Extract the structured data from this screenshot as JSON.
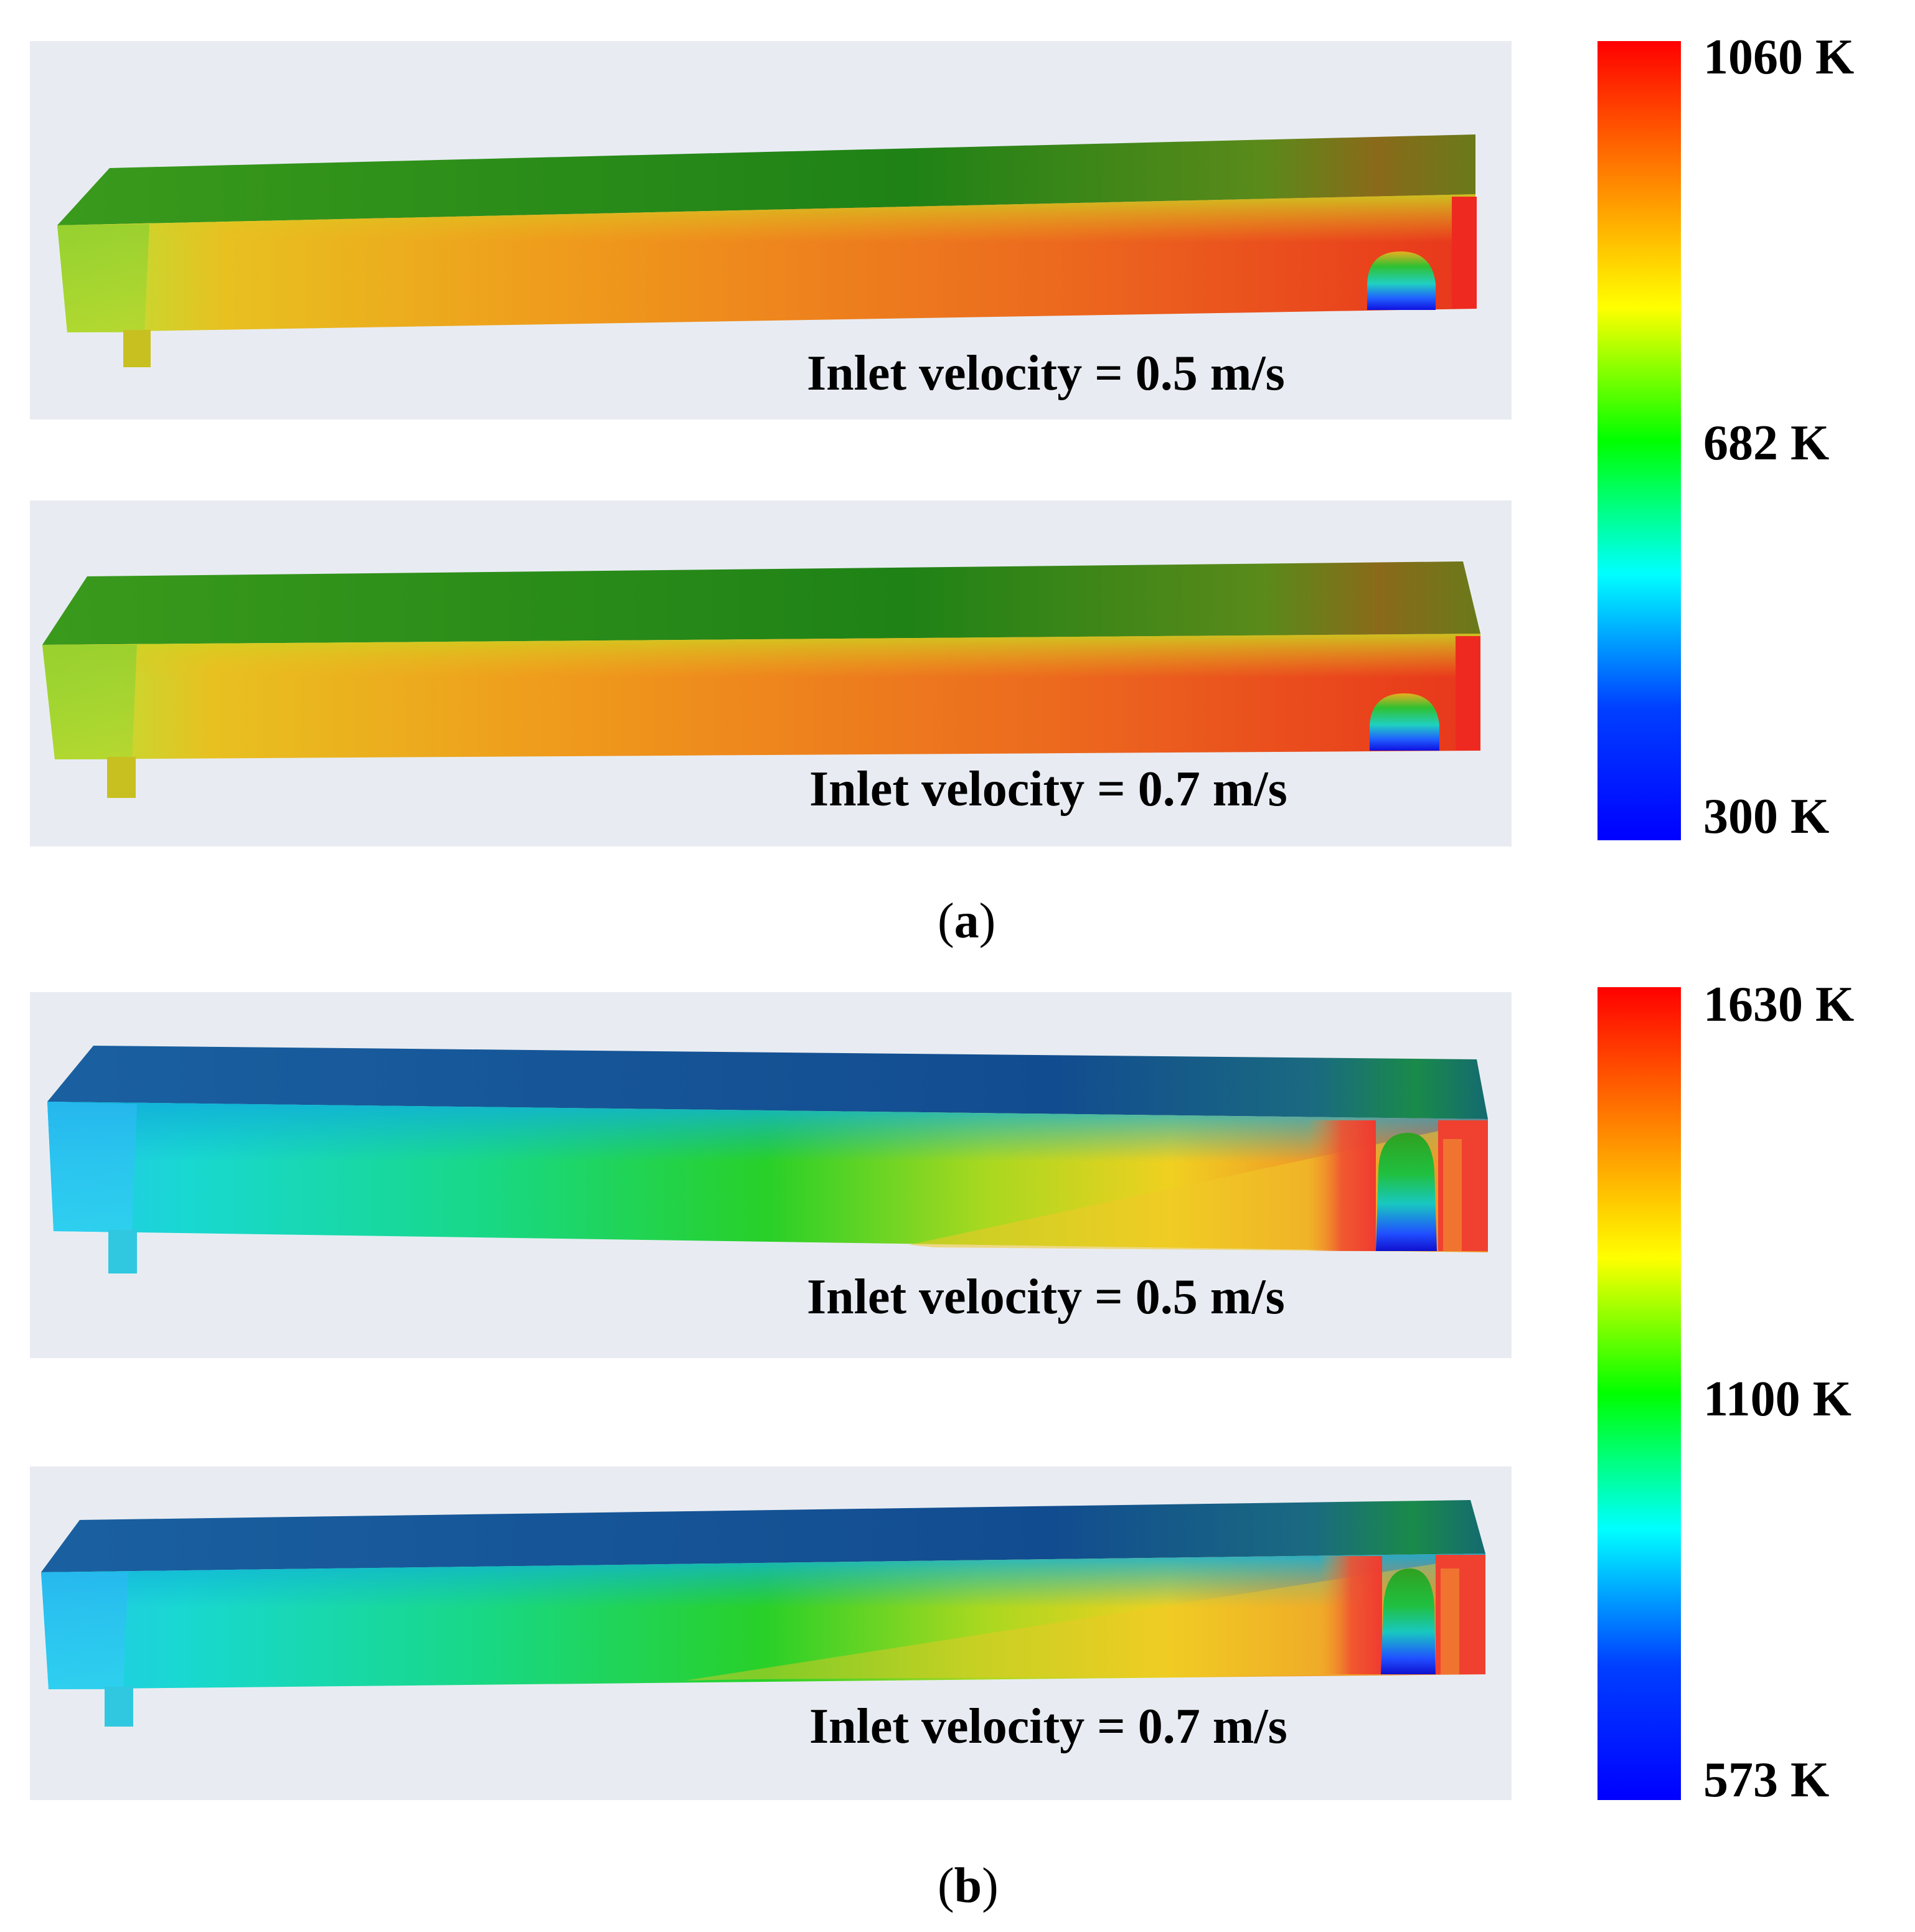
{
  "figure": {
    "a": {
      "label_letter": "a",
      "colorbar": {
        "max_label": "1060 K",
        "mid_label": "682 K",
        "min_label": "300 K",
        "colors": [
          "#ff0000",
          "#ff8000",
          "#ffff00",
          "#00ff00",
          "#00ffff",
          "#0040ff",
          "#0000ff"
        ]
      },
      "panels": [
        {
          "caption": "Inlet velocity = 0.5 m/s"
        },
        {
          "caption": "Inlet velocity = 0.7 m/s"
        }
      ]
    },
    "b": {
      "label_letter": "b",
      "colorbar": {
        "max_label": "1630 K",
        "mid_label": "1100 K",
        "min_label": "573 K",
        "colors": [
          "#ff0000",
          "#ff8000",
          "#ffff00",
          "#00ff00",
          "#00ffff",
          "#0040ff",
          "#0000ff"
        ]
      },
      "panels": [
        {
          "caption": "Inlet velocity = 0.5 m/s"
        },
        {
          "caption": "Inlet velocity = 0.7 m/s"
        }
      ]
    }
  }
}
